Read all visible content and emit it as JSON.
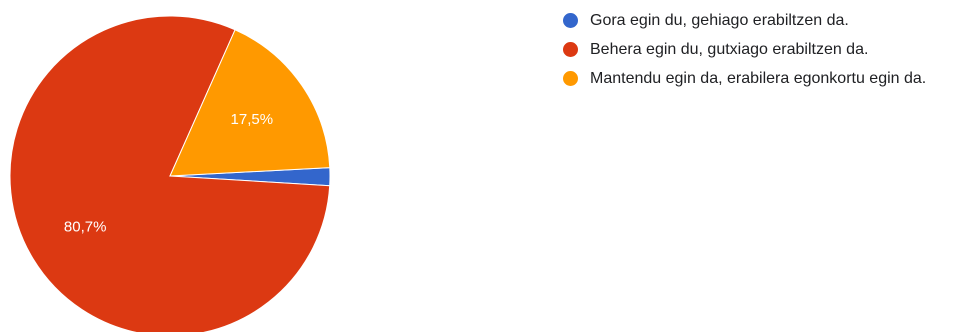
{
  "chart_data": {
    "type": "pie",
    "title": "",
    "legend_position": "right",
    "slices": [
      {
        "label": "Gora egin du, gehiago erabiltzen da.",
        "value": 1.8,
        "display_label": "",
        "color": "#3366cc"
      },
      {
        "label": "Behera egin du, gutxiago erabiltzen da.",
        "value": 80.7,
        "display_label": "80,7%",
        "color": "#dc3912"
      },
      {
        "label": "Mantendu egin da, erabilera egonkortu egin da.",
        "value": 17.5,
        "display_label": "17,5%",
        "color": "#ff9900"
      }
    ]
  }
}
